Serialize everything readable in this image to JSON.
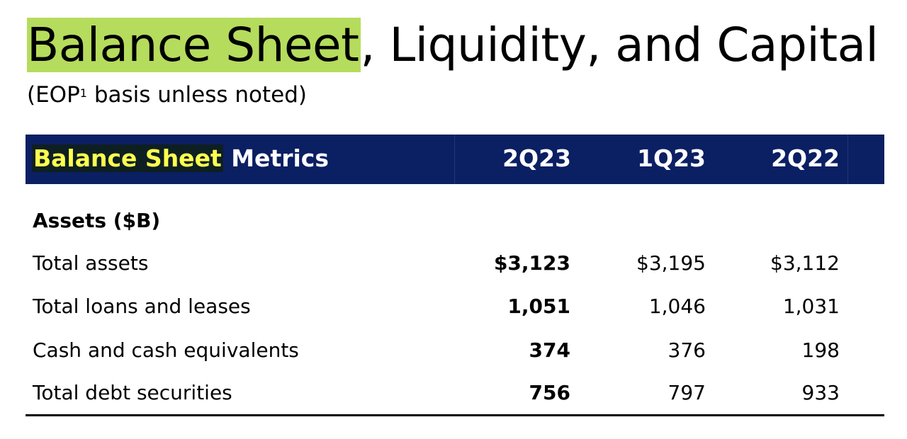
{
  "title": {
    "highlighted": "Balance Sheet",
    "rest": ", Liquidity, and Capital"
  },
  "subtitle": {
    "pre": "(EOP",
    "sup": "1",
    "post": " basis unless noted)"
  },
  "colors": {
    "title_highlight": "#b5dc5c",
    "header_band": "#0b1f63",
    "header_highlight_text": "#ffff50"
  },
  "table": {
    "header": {
      "highlighted": "Balance Sheet",
      "rest": " Metrics",
      "columns": [
        "2Q23",
        "1Q23",
        "2Q22"
      ]
    },
    "section": "Assets ($B)",
    "rows": [
      {
        "label": "Total assets",
        "values": [
          "$3,123",
          "$3,195",
          "$3,112"
        ]
      },
      {
        "label": "Total loans and leases",
        "values": [
          "1,051",
          "1,046",
          "1,031"
        ]
      },
      {
        "label": "Cash and cash equivalents",
        "values": [
          "374",
          "376",
          "198"
        ]
      },
      {
        "label": "Total debt securities",
        "values": [
          "756",
          "797",
          "933"
        ]
      }
    ]
  }
}
